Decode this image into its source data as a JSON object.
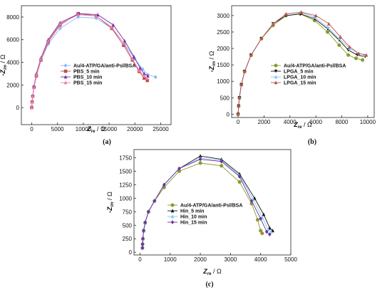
{
  "chart_data": [
    {
      "type": "line",
      "panel_label": "(a)",
      "xlabel": {
        "main": "Z",
        "sub": "re",
        "unit": " / Ω"
      },
      "ylabel": {
        "main": "-Z",
        "sub": "im",
        "unit": " / Ω"
      },
      "xlim": [
        -2000,
        27000
      ],
      "ylim": [
        -1500,
        9000
      ],
      "xticks": [
        "0",
        "5000",
        "10000",
        "15000",
        "20000",
        "25000"
      ],
      "yticks": [
        "0",
        "2000",
        "4000",
        "6000",
        "8000"
      ],
      "xtick_values": [
        0,
        5000,
        10000,
        15000,
        20000,
        25000
      ],
      "ytick_values": [
        0,
        2000,
        4000,
        6000,
        8000
      ],
      "legend_position": "bottom-right",
      "series": [
        {
          "name": "Au/4-ATP/GA/anti-Psl/BSA",
          "color": "#8ab4f8",
          "marker": "diamond",
          "x": [
            0,
            80,
            200,
            450,
            900,
            1800,
            3200,
            5500,
            9000,
            12500,
            15500,
            18000,
            20000,
            21500,
            22500,
            24000
          ],
          "y": [
            0,
            500,
            1000,
            1800,
            2800,
            4200,
            5600,
            7000,
            8000,
            7900,
            7000,
            5600,
            4300,
            3400,
            2900,
            2700
          ]
        },
        {
          "name": "PBS_5 min",
          "color": "#c0504d",
          "marker": "square",
          "x": [
            0,
            80,
            200,
            450,
            900,
            1800,
            3200,
            5500,
            9000,
            12500,
            15500,
            17800,
            19500,
            20800,
            21800,
            22400
          ],
          "y": [
            0,
            500,
            1000,
            1800,
            2800,
            4200,
            5800,
            7300,
            8300,
            8100,
            7000,
            5500,
            4200,
            3200,
            2600,
            2400
          ]
        },
        {
          "name": "PBS_10 min",
          "color": "#7030a0",
          "marker": "triangle",
          "x": [
            0,
            80,
            200,
            450,
            900,
            1800,
            3200,
            5500,
            9200,
            12800,
            15800,
            18000,
            19800,
            21000,
            21800,
            22500
          ],
          "y": [
            0,
            500,
            1000,
            1900,
            3000,
            4400,
            6000,
            7500,
            8300,
            8200,
            7300,
            5900,
            4500,
            3500,
            3000,
            2800
          ]
        },
        {
          "name": "PBS_15 min",
          "color": "#e87db5",
          "marker": "triangle",
          "x": [
            0,
            80,
            200,
            450,
            900,
            1800,
            3200,
            5500,
            9000,
            12500,
            15500,
            17800,
            19500,
            20800,
            21800,
            22300
          ],
          "y": [
            0,
            500,
            1000,
            1800,
            2900,
            4300,
            5900,
            7400,
            8200,
            8100,
            7100,
            5700,
            4300,
            3300,
            2800,
            2600
          ]
        }
      ]
    },
    {
      "type": "line",
      "panel_label": "(b)",
      "xlabel": {
        "main": "Z",
        "sub": "re",
        "unit": " / Ω"
      },
      "ylabel": {
        "main": "-Z",
        "sub": "im",
        "unit": " / Ω"
      },
      "xlim": [
        -500,
        10500
      ],
      "ylim": [
        -100,
        3300
      ],
      "xticks": [
        "0",
        "2000",
        "4000",
        "6000",
        "8000",
        "10000"
      ],
      "yticks": [
        "0",
        "500",
        "1000",
        "1500",
        "2000",
        "2500",
        "3000"
      ],
      "xtick_values": [
        0,
        2000,
        4000,
        6000,
        8000,
        10000
      ],
      "ytick_values": [
        0,
        500,
        1000,
        1500,
        2000,
        2500,
        3000
      ],
      "legend_position": "bottom-right",
      "series": [
        {
          "name": "Au/4-ATP/GA/anti-Psl/BSA",
          "color": "#8a9a2b",
          "marker": "circle",
          "x": [
            0,
            40,
            100,
            250,
            500,
            1000,
            1800,
            2700,
            3700,
            4800,
            5900,
            6900,
            7800,
            8500,
            9100,
            9600
          ],
          "y": [
            0,
            250,
            500,
            900,
            1300,
            1800,
            2300,
            2700,
            3000,
            3050,
            2850,
            2500,
            2100,
            1800,
            1700,
            1650
          ]
        },
        {
          "name": "LPGA_5 min",
          "color": "#111111",
          "marker": "triangle-down",
          "x": [
            0,
            40,
            100,
            250,
            500,
            1000,
            1800,
            2700,
            3700,
            4800,
            5900,
            6900,
            7800,
            8500,
            9200,
            9800
          ],
          "y": [
            0,
            250,
            500,
            900,
            1300,
            1800,
            2300,
            2750,
            3000,
            3050,
            2900,
            2600,
            2250,
            1950,
            1800,
            1750
          ]
        },
        {
          "name": "LPGA_10 min",
          "color": "#7fc8f8",
          "marker": "triangle",
          "x": [
            0,
            40,
            100,
            250,
            500,
            1000,
            1800,
            2700,
            3700,
            4800,
            5900,
            6900,
            7800,
            8600,
            9300,
            9800
          ],
          "y": [
            0,
            250,
            500,
            900,
            1300,
            1800,
            2300,
            2750,
            3050,
            3100,
            2950,
            2650,
            2300,
            2000,
            1850,
            1800
          ]
        },
        {
          "name": "LPGA_15 min",
          "color": "#c0504d",
          "marker": "triangle",
          "x": [
            0,
            40,
            100,
            250,
            500,
            1000,
            1800,
            2700,
            3700,
            4900,
            6000,
            7000,
            7900,
            8600,
            9300,
            9900
          ],
          "y": [
            0,
            250,
            500,
            900,
            1300,
            1800,
            2300,
            2750,
            3050,
            3100,
            3000,
            2750,
            2350,
            2050,
            1850,
            1800
          ]
        }
      ]
    },
    {
      "type": "line",
      "panel_label": "(c)",
      "xlabel": {
        "main": "Z",
        "sub": "re",
        "unit": " / Ω"
      },
      "ylabel": {
        "main": "-Z",
        "sub": "im",
        "unit": " / Ω"
      },
      "xlim": [
        -200,
        5000
      ],
      "ylim": [
        -50,
        1900
      ],
      "xticks": [
        "0",
        "1000",
        "2000",
        "3000",
        "4000",
        "5000"
      ],
      "yticks": [
        "0",
        "250",
        "500",
        "750",
        "1000",
        "1250",
        "1500",
        "1750"
      ],
      "xtick_values": [
        0,
        1000,
        2000,
        3000,
        4000,
        5000
      ],
      "ytick_values": [
        0,
        250,
        500,
        750,
        1000,
        1250,
        1500,
        1750
      ],
      "legend_position": "bottom-center",
      "series": [
        {
          "name": "Au/4-ATP/GA/anti-Psl/BSA",
          "color": "#8a9a2b",
          "marker": "circle",
          "x": [
            80,
            85,
            95,
            120,
            170,
            280,
            480,
            800,
            1300,
            2000,
            2700,
            3300,
            3700,
            3900,
            4000,
            4050
          ],
          "y": [
            80,
            150,
            250,
            400,
            550,
            750,
            950,
            1200,
            1500,
            1650,
            1600,
            1300,
            900,
            600,
            400,
            350
          ]
        },
        {
          "name": "Hin_5 min",
          "color": "#111111",
          "marker": "triangle",
          "x": [
            80,
            85,
            95,
            120,
            170,
            280,
            480,
            800,
            1300,
            2000,
            2700,
            3300,
            3800,
            4100,
            4300,
            4400
          ],
          "y": [
            80,
            150,
            250,
            400,
            550,
            750,
            950,
            1250,
            1550,
            1780,
            1720,
            1450,
            1000,
            700,
            450,
            400
          ]
        },
        {
          "name": "Hin_10 min",
          "color": "#7fc8f8",
          "marker": "triangle",
          "x": [
            80,
            85,
            95,
            120,
            170,
            280,
            480,
            800,
            1300,
            2000,
            2700,
            3300,
            3750,
            4050,
            4250,
            4350
          ],
          "y": [
            80,
            150,
            250,
            400,
            550,
            750,
            950,
            1250,
            1550,
            1740,
            1700,
            1420,
            980,
            650,
            420,
            380
          ]
        },
        {
          "name": "Hin_15 min",
          "color": "#7030a0",
          "marker": "diamond",
          "x": [
            80,
            85,
            95,
            120,
            170,
            280,
            480,
            800,
            1300,
            2000,
            2700,
            3300,
            3700,
            4000,
            4200,
            4300
          ],
          "y": [
            80,
            150,
            250,
            400,
            550,
            750,
            950,
            1250,
            1550,
            1720,
            1680,
            1400,
            950,
            620,
            380,
            330
          ]
        }
      ]
    }
  ]
}
